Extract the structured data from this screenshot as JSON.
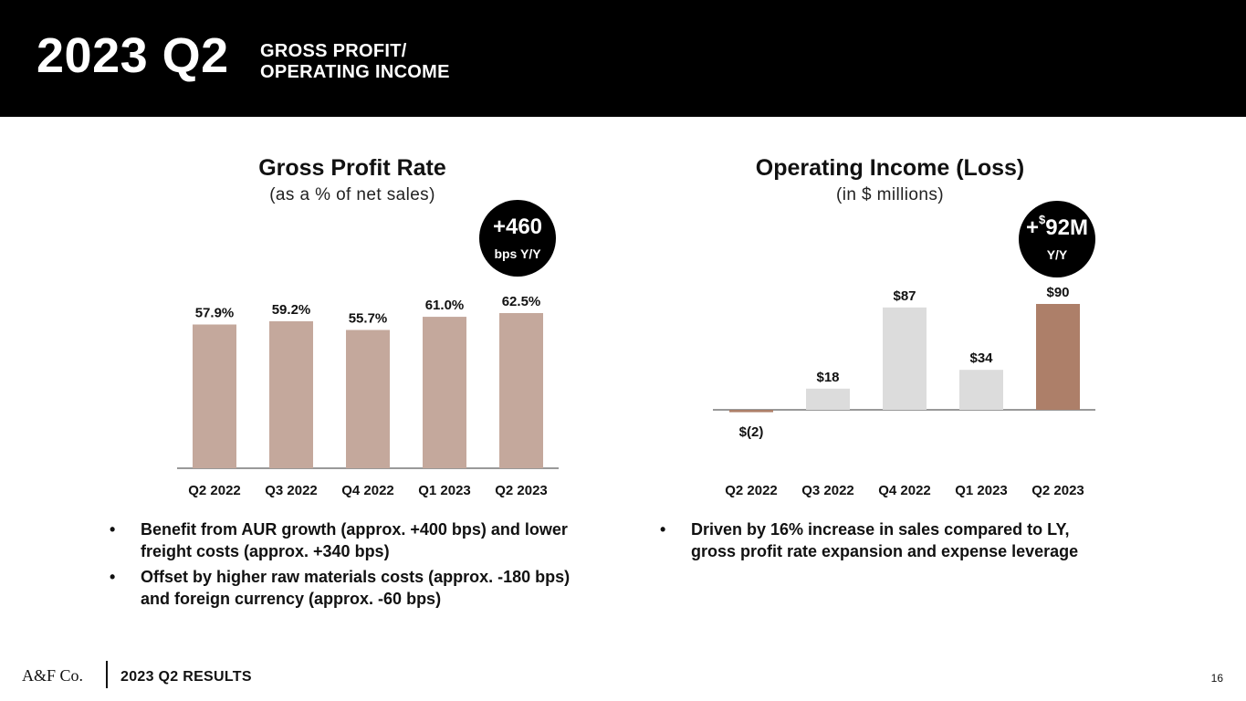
{
  "header": {
    "title_big": "2023 Q2",
    "title_line1": "GROSS PROFIT/",
    "title_line2": "OPERATING INCOME"
  },
  "colors": {
    "gp_bar": "#c4a89c",
    "oi_bar": "#dcdcdc",
    "oi_highlight": "#ad7f69",
    "oi_negative": "#ad7f69",
    "header_bg": "#000000"
  },
  "charts": {
    "gross_profit": {
      "title": "Gross Profit Rate",
      "subtitle": "(as a % of net sales)",
      "badge_value": "+460",
      "badge_unit": "bps Y/Y"
    },
    "operating_income": {
      "title": "Operating Income (Loss)",
      "subtitle": "(in $ millions)",
      "badge_prefix": "+",
      "badge_currency": "$",
      "badge_value": "92M",
      "badge_unit": "Y/Y"
    }
  },
  "chart_data": [
    {
      "type": "bar",
      "title": "Gross Profit Rate",
      "subtitle": "(as a % of net sales)",
      "categories": [
        "Q2 2022",
        "Q3 2022",
        "Q4 2022",
        "Q1 2023",
        "Q2 2023"
      ],
      "values": [
        57.9,
        59.2,
        55.7,
        61.0,
        62.5
      ],
      "labels": [
        "57.9%",
        "59.2%",
        "55.7%",
        "61.0%",
        "62.5%"
      ],
      "ylim": [
        0,
        65
      ],
      "xlabel": "",
      "ylabel": ""
    },
    {
      "type": "bar",
      "title": "Operating Income (Loss)",
      "subtitle": "(in $ millions)",
      "categories": [
        "Q2 2022",
        "Q3 2022",
        "Q4 2022",
        "Q1 2023",
        "Q2 2023"
      ],
      "values": [
        -2,
        18,
        87,
        34,
        90
      ],
      "labels": [
        "$(2)",
        "$18",
        "$87",
        "$34",
        "$90"
      ],
      "highlight_index": 4,
      "ylim": [
        -5,
        95
      ],
      "xlabel": "",
      "ylabel": ""
    }
  ],
  "bullets": {
    "left": [
      {
        "line1": "Benefit from AUR growth (approx. +400 bps) and lower",
        "line2": "freight costs (approx. +340 bps)"
      },
      {
        "line1": "Offset by higher raw materials costs (approx. -180 bps)",
        "line2": "and foreign currency (approx. -60 bps)"
      }
    ],
    "right": [
      {
        "line1": "Driven by 16% increase in sales compared to LY,",
        "line2": "gross profit rate expansion and expense leverage"
      }
    ],
    "bullet_char": "•"
  },
  "footer": {
    "logo": "A&F Co.",
    "text": "2023 Q2 RESULTS",
    "page_number": "16"
  }
}
